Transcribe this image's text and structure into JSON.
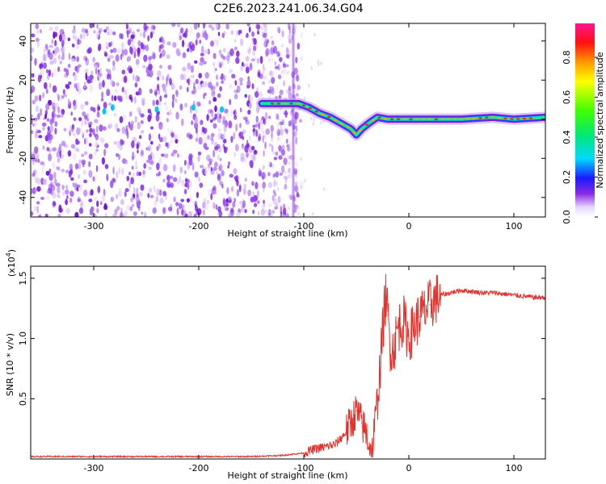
{
  "title": "C2E6.2023.241.06.34.G04",
  "chart_data": [
    {
      "type": "heatmap",
      "xlabel": "Height of straight line (km)",
      "ylabel": "Frequency (Hz)",
      "xlim": [
        -360,
        130
      ],
      "ylim": [
        -50,
        49
      ],
      "xticks": [
        -300,
        -200,
        -100,
        0,
        100
      ],
      "yticks": [
        -40,
        -20,
        0,
        20,
        40
      ],
      "colorbar": {
        "label": "Normalized spectral amplitude",
        "range": [
          0.0,
          0.97
        ],
        "ticks": [
          0.0,
          0.2,
          0.4,
          0.6,
          0.8
        ],
        "colormap": "rainbow (white to violet to blue to cyan to green to yellow to orange to red to magenta)"
      },
      "ridge_track": {
        "x": [
          -140,
          -120,
          -105,
          -95,
          -85,
          -75,
          -65,
          -55,
          -50,
          -45,
          -38,
          -30,
          -20,
          -10,
          0,
          20,
          50,
          80,
          100,
          130
        ],
        "y": [
          8,
          8,
          8,
          6,
          3,
          1,
          -2,
          -5,
          -8,
          -5,
          -2,
          1,
          0,
          0,
          0,
          0,
          0,
          1,
          0,
          1
        ]
      },
      "noise_region_x": [
        -360,
        -110
      ]
    },
    {
      "type": "line",
      "xlabel": "Height of straight line (km)",
      "ylabel": "SNR (10 * v/v)",
      "y_multiplier": "(x10^4)",
      "xlim": [
        -360,
        130
      ],
      "ylim": [
        0,
        1.6
      ],
      "xticks": [
        -300,
        -200,
        -100,
        0,
        100
      ],
      "yticks": [
        0.5,
        1.0,
        1.5
      ],
      "series": [
        {
          "color": "#e8302a",
          "x": [
            -360,
            -300,
            -200,
            -150,
            -120,
            -100,
            -90,
            -80,
            -70,
            -60,
            -55,
            -50,
            -45,
            -40,
            -35,
            -30,
            -27,
            -25,
            -22,
            -20,
            -18,
            -15,
            -10,
            -5,
            0,
            5,
            10,
            15,
            20,
            25,
            30,
            40,
            50,
            60,
            70,
            80,
            90,
            100,
            110,
            120,
            130
          ],
          "y": [
            0.02,
            0.02,
            0.02,
            0.02,
            0.03,
            0.05,
            0.08,
            0.1,
            0.12,
            0.22,
            0.3,
            0.4,
            0.3,
            0.2,
            0.05,
            0.5,
            0.8,
            1.05,
            1.35,
            1.2,
            0.95,
            0.9,
            1.1,
            1.15,
            1.0,
            1.1,
            1.18,
            1.22,
            1.28,
            1.32,
            1.36,
            1.38,
            1.4,
            1.39,
            1.38,
            1.38,
            1.37,
            1.36,
            1.35,
            1.34,
            1.34
          ]
        }
      ]
    }
  ]
}
